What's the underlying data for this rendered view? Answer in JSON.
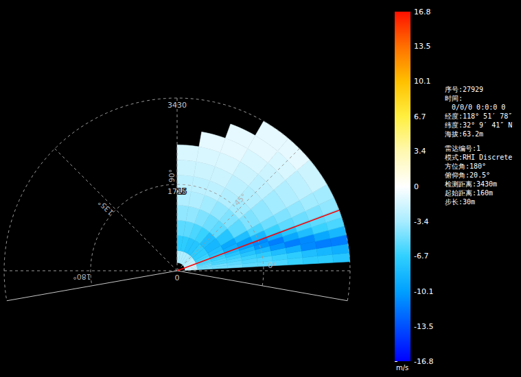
{
  "chart_data": {
    "type": "rhi",
    "range_edges": [
      160,
      400,
      700,
      1000,
      1300,
      1600,
      1900,
      2200,
      2500,
      2800,
      3100,
      3430
    ],
    "elevation_edges": [
      3,
      6,
      9,
      12,
      15,
      18,
      21,
      25,
      30,
      40,
      50,
      60,
      70,
      80,
      90
    ],
    "values": [
      [
        -2,
        -4.5,
        -5,
        -5,
        -5.5,
        -5.5,
        -6,
        -6.5,
        -7,
        -7,
        -7.5
      ],
      [
        -2,
        -5,
        -5,
        -5.5,
        -6,
        -6,
        -6.5,
        -7,
        -8,
        -8.5,
        -9
      ],
      [
        -2,
        -5,
        -6,
        -6,
        -6.5,
        -7,
        -8,
        -9,
        -11,
        -11.5,
        -11.5
      ],
      [
        -2,
        -5.5,
        -6,
        -6.5,
        -7.5,
        -8.5,
        -10.5,
        -11.5,
        -11,
        -9.5,
        -8.5
      ],
      [
        -2,
        -6,
        -6.5,
        -7.5,
        -8.5,
        -10.5,
        -11.5,
        -9.5,
        -8,
        -6.5,
        -6
      ],
      [
        -2,
        -6,
        -7,
        -8.5,
        -10,
        -11,
        -9,
        -7.5,
        -6,
        -5.5,
        -5
      ],
      [
        -2,
        -6,
        -7.5,
        -9,
        -10,
        -8.5,
        -6.5,
        -5.5,
        -5,
        -4.5,
        -4
      ],
      [
        -2,
        -6.5,
        -8,
        -9.5,
        -8,
        -6,
        -5,
        -4.5,
        -4,
        -3.5,
        -3.5
      ],
      [
        -2.5,
        -7,
        -8.5,
        -7.5,
        -5.5,
        -4.5,
        -4,
        -3.5,
        -3,
        -2.5,
        -2
      ],
      [
        -3,
        -7,
        -8,
        -5.5,
        -4.5,
        -3.5,
        -3,
        -2.5,
        -2,
        -1.5,
        -1
      ],
      [
        -3,
        -7.5,
        -6.5,
        -5,
        -4,
        -3,
        -2.5,
        -2,
        -1.5,
        -1,
        -1
      ],
      [
        -3,
        -7.5,
        -6,
        -4.5,
        -3.5,
        -2.5,
        -2,
        -1.5,
        -1,
        -1,
        null
      ],
      [
        -3,
        -7,
        -5.5,
        -4,
        -3,
        -2.5,
        -2,
        -1.5,
        -1,
        null,
        null
      ],
      [
        -3,
        -7,
        -5.5,
        -4,
        -3,
        -2.5,
        -2,
        -1.5,
        null,
        null,
        null
      ]
    ],
    "angle_extent": [
      -10,
      190
    ],
    "rings": [
      0,
      1715,
      3430
    ],
    "spokes": [
      {
        "value": 0,
        "label": "0°"
      },
      {
        "value": 45,
        "label": "45°"
      },
      {
        "value": 90,
        "label": "90°"
      },
      {
        "value": 135,
        "label": "135°"
      },
      {
        "value": 180,
        "label": "180°"
      }
    ],
    "beam": {
      "elevation": 20.5,
      "range": 3430,
      "color": "#ff0000"
    },
    "colorbar": {
      "range": [
        -16.8,
        16.8
      ],
      "ticks": [
        16.8,
        13.5,
        10.1,
        6.7,
        3.4,
        0,
        -3.4,
        -6.7,
        -10.1,
        -13.5,
        -16.8
      ],
      "unit": "m/s",
      "colors": [
        "#0000ff",
        "#0050ff",
        "#00a0ff",
        "#30d0ff",
        "#a8ecff",
        "#ffffff",
        "#fff8b0",
        "#ffef40",
        "#ffc000",
        "#ff7000",
        "#ff1000"
      ]
    }
  },
  "info_panel": [
    [
      "序号:27929",
      "时间:",
      "0/0/0 0:0:0 0",
      "经度:118° 51′ 78″",
      "纬度:32° 9′ 41″ N",
      "海拔:63.2m"
    ],
    [
      "雷达编号:1",
      "模式:RHI Discrete",
      "方位角:180°",
      "俯仰角:20.5°",
      "检测距离:3430m",
      "起始距离:160m",
      "步长:30m"
    ]
  ]
}
